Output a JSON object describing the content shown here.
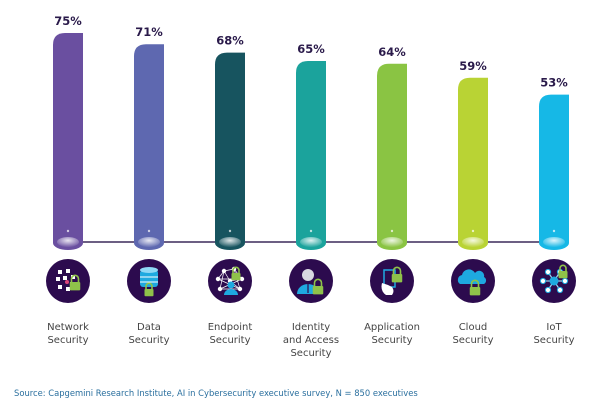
{
  "chart_data": {
    "type": "bar",
    "title": "",
    "xlabel": "",
    "ylabel": "",
    "ylim": [
      0,
      100
    ],
    "grid": false,
    "legend": "none",
    "categories": [
      [
        "Network",
        "Security"
      ],
      [
        "Data",
        "Security"
      ],
      [
        "Endpoint",
        "Security"
      ],
      [
        "Identity",
        "and Access",
        "Security"
      ],
      [
        "Application",
        "Security"
      ],
      [
        "Cloud",
        "Security"
      ],
      [
        "IoT",
        "Security"
      ]
    ],
    "values": [
      75,
      71,
      68,
      65,
      64,
      59,
      53
    ],
    "value_labels": [
      "75%",
      "71%",
      "68%",
      "65%",
      "64%",
      "59%",
      "53%"
    ],
    "colors": [
      "#6a4fa0",
      "#5e68b0",
      "#17545f",
      "#1ba39c",
      "#8ac443",
      "#b9d334",
      "#16b8e6"
    ],
    "icons": [
      "network-lock-icon",
      "database-lock-icon",
      "endpoint-network-user-icon",
      "identity-user-lock-icon",
      "application-hand-lock-icon",
      "cloud-lock-icon",
      "iot-hub-lock-icon"
    ]
  },
  "icon_bg_color": "#2c0b4e",
  "connector_color": "#3b2a5a",
  "source": "Source: Capgemini Research Institute, AI in Cybersecurity executive survey, N = 850 executives"
}
